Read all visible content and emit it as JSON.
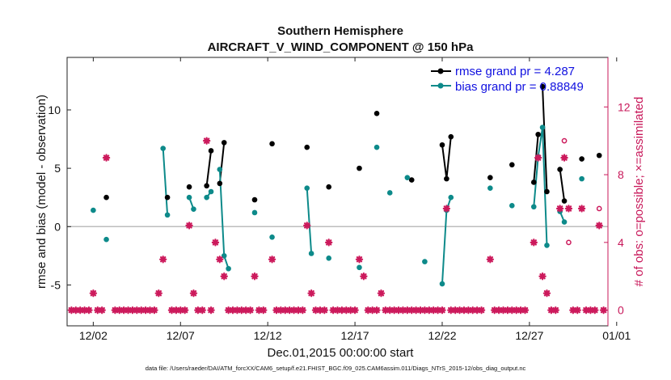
{
  "chart_data": {
    "type": "line",
    "title": "Southern Hemisphere",
    "subtitle": "AIRCRAFT_V_WIND_COMPONENT @ 150 hPa",
    "xlabel": "Dec.01,2015 00:00:00 start",
    "ylabel": "rmse and bias (model - observation)",
    "y2label": "# of obs: o=possible; ×=assimilated",
    "footnote": "data file: /Users/raeder/DAI/ATM_forcXX/CAM6_setup/f.e21.FHIST_BGC.f09_025.CAM6assim.011/Diags_NTrS_2015-12/obs_diag_output.nc",
    "xlim": [
      0.5,
      31.5
    ],
    "ylim": [
      -8.5,
      14.5
    ],
    "y2lim": [
      -0.9242,
      14.9242
    ],
    "x_ticks": [
      2,
      7,
      12,
      17,
      22,
      27,
      32
    ],
    "x_tick_labels": [
      "12/02",
      "12/07",
      "12/12",
      "12/17",
      "12/22",
      "12/27",
      "01/01"
    ],
    "y_ticks": [
      -5,
      0,
      5,
      10
    ],
    "y_tick_labels": [
      "-5",
      "0",
      "5",
      "10"
    ],
    "y2_ticks": [
      0,
      4,
      8,
      12
    ],
    "y2_tick_labels": [
      "0",
      "4",
      "8",
      "12"
    ],
    "zero_line": 0,
    "series": [
      {
        "name": "rmse",
        "legend": "rmse grand pr = 4.287",
        "color": "#000000",
        "points": [
          [
            2.75,
            2.5
          ],
          [
            6.25,
            2.5
          ],
          [
            7.5,
            3.4
          ],
          [
            8.5,
            3.5
          ],
          [
            8.75,
            6.5
          ],
          [
            9.25,
            3.7
          ],
          [
            9.5,
            7.2
          ],
          [
            11.25,
            2.3
          ],
          [
            12.25,
            7.1
          ],
          [
            14.25,
            6.8
          ],
          [
            15.5,
            3.4
          ],
          [
            17.25,
            5.0
          ],
          [
            18.25,
            9.7
          ],
          [
            20.25,
            4.0
          ],
          [
            22.25,
            4.1
          ],
          [
            22.0,
            7.0
          ],
          [
            22.5,
            7.7
          ],
          [
            24.75,
            4.2
          ],
          [
            26.0,
            5.3
          ],
          [
            27.25,
            3.8
          ],
          [
            27.5,
            7.9
          ],
          [
            27.75,
            12.0
          ],
          [
            28.0,
            3.0
          ],
          [
            28.75,
            4.9
          ],
          [
            29.0,
            2.2
          ],
          [
            30.0,
            5.8
          ],
          [
            31.0,
            6.1
          ]
        ],
        "segments": [
          [
            [
              8.5,
              3.5
            ],
            [
              8.75,
              6.5
            ]
          ],
          [
            [
              9.25,
              3.7
            ],
            [
              9.5,
              7.2
            ]
          ],
          [
            [
              22.0,
              7.0
            ],
            [
              22.25,
              4.1
            ],
            [
              22.5,
              7.7
            ]
          ],
          [
            [
              27.25,
              3.8
            ],
            [
              27.5,
              7.9
            ]
          ],
          [
            [
              27.75,
              12.0
            ],
            [
              28.0,
              3.0
            ]
          ],
          [
            [
              28.75,
              4.9
            ],
            [
              29.0,
              2.2
            ]
          ]
        ]
      },
      {
        "name": "bias",
        "legend": "bias grand pr = 0.88849",
        "color": "#0d8a8a",
        "points": [
          [
            2.0,
            1.4
          ],
          [
            2.75,
            -1.1
          ],
          [
            6.0,
            6.7
          ],
          [
            6.25,
            1.0
          ],
          [
            7.5,
            2.5
          ],
          [
            7.75,
            1.5
          ],
          [
            8.5,
            2.5
          ],
          [
            8.75,
            3.0
          ],
          [
            9.25,
            4.9
          ],
          [
            9.5,
            -2.5
          ],
          [
            9.75,
            -3.6
          ],
          [
            11.25,
            1.2
          ],
          [
            12.25,
            -0.9
          ],
          [
            14.25,
            3.3
          ],
          [
            14.5,
            -2.3
          ],
          [
            15.5,
            -2.7
          ],
          [
            17.25,
            -3.5
          ],
          [
            18.25,
            6.8
          ],
          [
            19.0,
            2.9
          ],
          [
            20.0,
            4.2
          ],
          [
            21.0,
            -3.0
          ],
          [
            22.0,
            -4.9
          ],
          [
            22.25,
            1.4
          ],
          [
            22.5,
            2.5
          ],
          [
            24.75,
            3.3
          ],
          [
            26.0,
            1.8
          ],
          [
            27.25,
            1.7
          ],
          [
            27.5,
            6.0
          ],
          [
            27.75,
            8.5
          ],
          [
            28.0,
            -1.6
          ],
          [
            28.75,
            1.3
          ],
          [
            29.0,
            0.4
          ],
          [
            30.0,
            4.1
          ]
        ],
        "segments": [
          [
            [
              6.0,
              6.7
            ],
            [
              6.25,
              1.0
            ]
          ],
          [
            [
              7.5,
              2.5
            ],
            [
              7.75,
              1.5
            ]
          ],
          [
            [
              8.5,
              2.5
            ],
            [
              8.75,
              3.0
            ]
          ],
          [
            [
              9.25,
              4.9
            ],
            [
              9.5,
              -2.5
            ],
            [
              9.75,
              -3.6
            ]
          ],
          [
            [
              14.25,
              3.3
            ],
            [
              14.5,
              -2.3
            ]
          ],
          [
            [
              22.0,
              -4.9
            ],
            [
              22.25,
              1.4
            ],
            [
              22.5,
              2.5
            ]
          ],
          [
            [
              27.25,
              1.7
            ],
            [
              27.5,
              6.0
            ],
            [
              27.75,
              8.5
            ],
            [
              28.0,
              -1.6
            ]
          ],
          [
            [
              28.75,
              1.3
            ],
            [
              29.0,
              0.4
            ]
          ]
        ]
      }
    ],
    "obs_assimilated": {
      "name": "# assimilated",
      "color": "#cc1a5c",
      "points": [
        [
          0.75,
          0
        ],
        [
          1.0,
          0
        ],
        [
          1.25,
          0
        ],
        [
          1.5,
          0
        ],
        [
          1.75,
          0
        ],
        [
          2.0,
          1
        ],
        [
          2.25,
          0
        ],
        [
          2.5,
          0
        ],
        [
          2.75,
          9
        ],
        [
          3.25,
          0
        ],
        [
          3.5,
          0
        ],
        [
          3.75,
          0
        ],
        [
          4.0,
          0
        ],
        [
          4.25,
          0
        ],
        [
          4.5,
          0
        ],
        [
          4.75,
          0
        ],
        [
          5.0,
          0
        ],
        [
          5.25,
          0
        ],
        [
          5.5,
          0
        ],
        [
          5.75,
          1
        ],
        [
          6.0,
          3
        ],
        [
          6.5,
          0
        ],
        [
          6.75,
          0
        ],
        [
          7.0,
          0
        ],
        [
          7.25,
          0
        ],
        [
          7.5,
          5
        ],
        [
          7.75,
          1
        ],
        [
          8.0,
          0
        ],
        [
          8.25,
          0
        ],
        [
          8.5,
          10
        ],
        [
          8.75,
          0
        ],
        [
          9.0,
          4
        ],
        [
          9.25,
          3
        ],
        [
          9.5,
          2
        ],
        [
          9.75,
          0
        ],
        [
          10.0,
          0
        ],
        [
          10.25,
          0
        ],
        [
          10.5,
          0
        ],
        [
          10.75,
          0
        ],
        [
          11.0,
          0
        ],
        [
          11.25,
          2
        ],
        [
          11.5,
          0
        ],
        [
          11.75,
          0
        ],
        [
          12.25,
          3
        ],
        [
          12.5,
          0
        ],
        [
          12.75,
          0
        ],
        [
          13.0,
          0
        ],
        [
          13.25,
          0
        ],
        [
          13.5,
          0
        ],
        [
          13.75,
          0
        ],
        [
          14.0,
          0
        ],
        [
          14.25,
          5
        ],
        [
          14.5,
          1
        ],
        [
          14.75,
          0
        ],
        [
          15.0,
          0
        ],
        [
          15.25,
          0
        ],
        [
          15.5,
          4
        ],
        [
          15.75,
          0
        ],
        [
          16.0,
          0
        ],
        [
          16.25,
          0
        ],
        [
          16.5,
          0
        ],
        [
          16.75,
          0
        ],
        [
          17.0,
          0
        ],
        [
          17.25,
          3
        ],
        [
          17.5,
          2
        ],
        [
          17.75,
          0
        ],
        [
          18.0,
          0
        ],
        [
          18.25,
          0
        ],
        [
          18.5,
          1
        ],
        [
          18.75,
          0
        ],
        [
          19.0,
          0
        ],
        [
          19.25,
          0
        ],
        [
          19.5,
          0
        ],
        [
          19.75,
          0
        ],
        [
          20.0,
          0
        ],
        [
          20.25,
          0
        ],
        [
          20.5,
          0
        ],
        [
          20.75,
          0
        ],
        [
          21.0,
          0
        ],
        [
          21.25,
          0
        ],
        [
          21.5,
          0
        ],
        [
          21.75,
          0
        ],
        [
          22.0,
          0
        ],
        [
          22.25,
          6
        ],
        [
          22.5,
          0
        ],
        [
          22.75,
          0
        ],
        [
          23.0,
          0
        ],
        [
          23.25,
          0
        ],
        [
          23.5,
          0
        ],
        [
          23.75,
          0
        ],
        [
          24.0,
          0
        ],
        [
          24.25,
          0
        ],
        [
          24.75,
          3
        ],
        [
          25.0,
          0
        ],
        [
          25.25,
          0
        ],
        [
          25.5,
          0
        ],
        [
          25.75,
          0
        ],
        [
          26.0,
          0
        ],
        [
          26.25,
          0
        ],
        [
          26.5,
          0
        ],
        [
          26.75,
          0
        ],
        [
          27.25,
          4
        ],
        [
          27.5,
          9
        ],
        [
          27.75,
          2
        ],
        [
          28.0,
          1
        ],
        [
          28.25,
          0
        ],
        [
          28.5,
          0
        ],
        [
          28.75,
          6
        ],
        [
          29.0,
          9
        ],
        [
          29.25,
          6
        ],
        [
          29.5,
          0
        ],
        [
          29.75,
          0
        ],
        [
          30.0,
          6
        ],
        [
          30.25,
          0
        ],
        [
          30.5,
          0
        ],
        [
          30.75,
          0
        ],
        [
          31.0,
          5
        ],
        [
          31.25,
          0
        ]
      ]
    },
    "obs_possible": {
      "name": "# possible",
      "color": "#cc1a5c",
      "points": [
        [
          29.0,
          10
        ],
        [
          29.25,
          4
        ],
        [
          31.0,
          6
        ]
      ]
    }
  }
}
